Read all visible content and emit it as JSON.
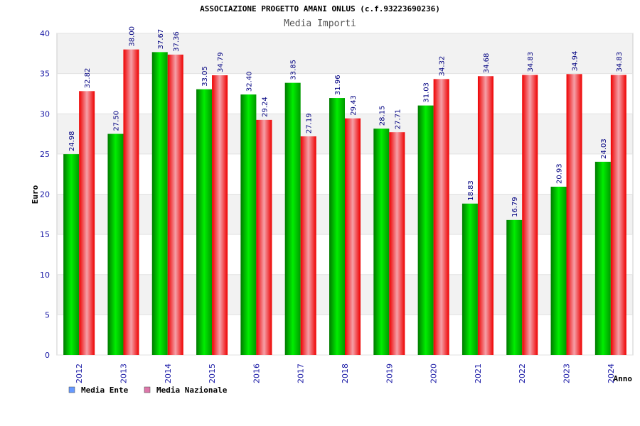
{
  "chart_data": {
    "type": "bar",
    "title": "ASSOCIAZIONE PROGETTO AMANI ONLUS (c.f.93223690236)",
    "subtitle": "Media Importi",
    "xlabel": "Anno",
    "ylabel": "Euro",
    "ylim": [
      0,
      40
    ],
    "yticks": [
      0,
      5,
      10,
      15,
      20,
      25,
      30,
      35,
      40
    ],
    "grid": true,
    "legend_position": "bottom-left",
    "categories": [
      "2012",
      "2013",
      "2014",
      "2015",
      "2016",
      "2017",
      "2018",
      "2019",
      "2020",
      "2021",
      "2022",
      "2023",
      "2024"
    ],
    "series": [
      {
        "name": "Media Ente",
        "color": "#00cc00",
        "legend_color": "#6699ff",
        "values": [
          24.98,
          27.5,
          37.67,
          33.05,
          32.4,
          33.85,
          31.96,
          28.15,
          31.03,
          18.83,
          16.79,
          20.93,
          24.03
        ],
        "labels": [
          "24.98",
          "27.50",
          "37.67",
          "33.05",
          "32.40",
          "33.85",
          "31.96",
          "28.15",
          "31.03",
          "18.83",
          "16.79",
          "20.93",
          "24.03"
        ]
      },
      {
        "name": "Media Nazionale",
        "color": "#ff0000",
        "legend_color": "#dd77aa",
        "values": [
          32.82,
          38.0,
          37.36,
          34.79,
          29.24,
          27.19,
          29.43,
          27.71,
          34.32,
          34.68,
          34.83,
          34.94,
          34.83
        ],
        "labels": [
          "32.82",
          "38.00",
          "37.36",
          "34.79",
          "29.24",
          "27.19",
          "29.43",
          "27.71",
          "34.32",
          "34.68",
          "34.83",
          "34.94",
          "34.83"
        ]
      }
    ]
  }
}
